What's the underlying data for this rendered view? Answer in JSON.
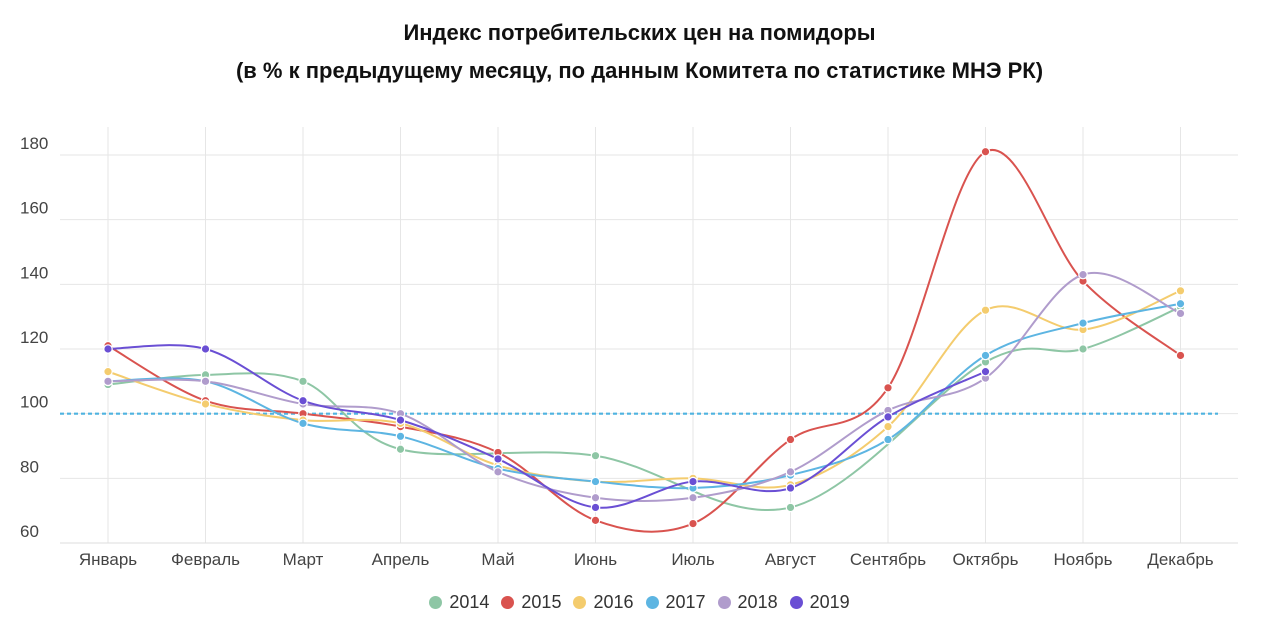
{
  "title_line1": "Индекс потребительских цен на помидоры",
  "title_line2": "(в % к предыдущему месяцу, по данным Комитета по статистике МНЭ РК)",
  "chart_data": {
    "type": "line",
    "title": "Индекс потребительских цен на помидоры (в % к предыдущему месяцу, по данным Комитета по статистике МНЭ РК)",
    "categories": [
      "Январь",
      "Февраль",
      "Март",
      "Апрель",
      "Май",
      "Июнь",
      "Июль",
      "Август",
      "Сентябрь",
      "Октябрь",
      "Ноябрь",
      "Декабрь"
    ],
    "ylim": [
      60,
      180
    ],
    "yticks": [
      60,
      80,
      100,
      120,
      140,
      160,
      180
    ],
    "reference_line": 100,
    "grid": true,
    "legend_position": "bottom",
    "series": [
      {
        "name": "2014",
        "color": "#8ec6a5",
        "values": [
          109,
          112,
          110,
          89,
          null,
          87,
          null,
          71,
          null,
          116,
          120,
          133
        ]
      },
      {
        "name": "2015",
        "color": "#d9534f",
        "values": [
          121,
          104,
          100,
          96,
          88,
          67,
          66,
          92,
          108,
          181,
          141,
          118
        ]
      },
      {
        "name": "2016",
        "color": "#f4cc6e",
        "values": [
          113,
          103,
          98,
          97,
          84,
          79,
          80,
          78,
          96,
          132,
          126,
          138
        ]
      },
      {
        "name": "2017",
        "color": "#5db5e2",
        "values": [
          110,
          110,
          97,
          93,
          83,
          79,
          77,
          81,
          92,
          118,
          128,
          134
        ]
      },
      {
        "name": "2018",
        "color": "#b09ccc",
        "values": [
          110,
          110,
          103,
          100,
          82,
          74,
          74,
          82,
          101,
          111,
          143,
          131
        ]
      },
      {
        "name": "2019",
        "color": "#6a4fd4",
        "values": [
          120,
          120,
          104,
          98,
          86,
          71,
          79,
          77,
          99,
          113,
          null,
          null
        ]
      }
    ]
  }
}
